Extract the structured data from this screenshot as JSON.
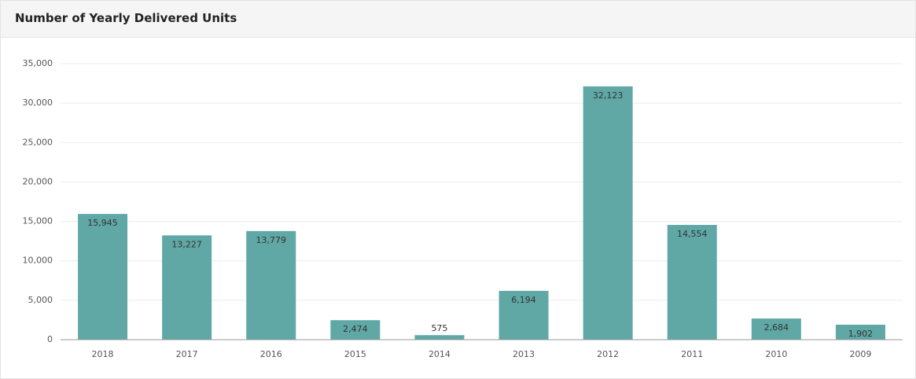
{
  "chart_data": {
    "type": "bar",
    "title": "Number of Yearly Delivered Units",
    "categories": [
      "2018",
      "2017",
      "2016",
      "2015",
      "2014",
      "2013",
      "2012",
      "2011",
      "2010",
      "2009"
    ],
    "values": [
      15945,
      13227,
      13779,
      2474,
      575,
      6194,
      32123,
      14554,
      2684,
      1902
    ],
    "value_labels": [
      "15,945",
      "13,227",
      "13,779",
      "2,474",
      "575",
      "6,194",
      "32,123",
      "14,554",
      "2,684",
      "1,902"
    ],
    "color": "#5fa8a6",
    "ylim": [
      0,
      35000
    ],
    "yticks": [
      0,
      {
        "value": 5000,
        "label": "5,000"
      },
      {
        "value": 10000,
        "label": "10,000"
      },
      {
        "value": 15000,
        "label": "15,000"
      },
      {
        "value": 20000,
        "label": "20,000"
      },
      {
        "value": 25000,
        "label": "25,000"
      },
      {
        "value": 30000,
        "label": "30,000"
      },
      {
        "value": 35000,
        "label": "35,000"
      }
    ],
    "grid": true
  }
}
